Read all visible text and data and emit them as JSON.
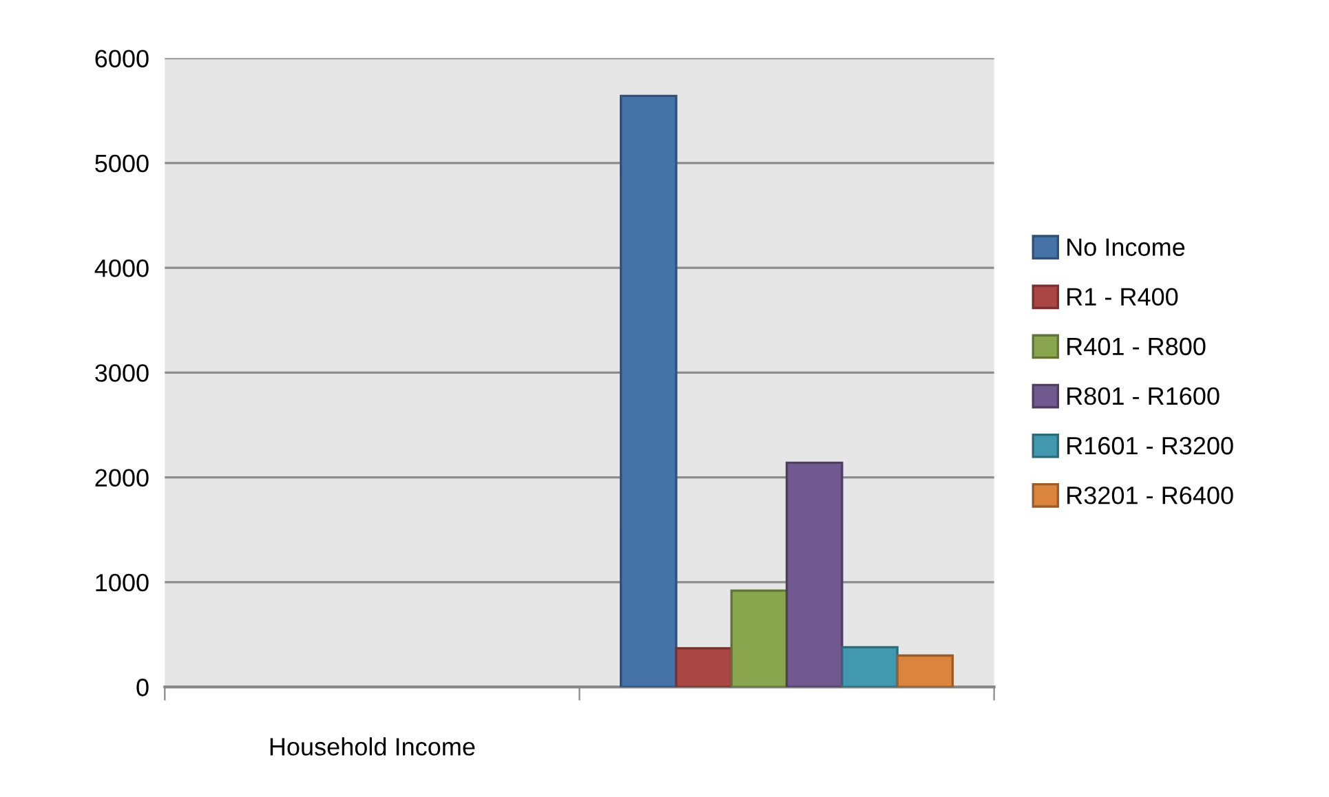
{
  "chart_data": {
    "type": "bar",
    "categories": [
      "Household Income",
      null
    ],
    "series": [
      {
        "name": "No Income",
        "color": "#4572a7",
        "values": [
          null,
          5640
        ]
      },
      {
        "name": "R1 - R400",
        "color": "#aa4643",
        "values": [
          null,
          370
        ]
      },
      {
        "name": "R401 - R800",
        "color": "#89a54e",
        "values": [
          null,
          920
        ]
      },
      {
        "name": "R801 - R1600",
        "color": "#71588f",
        "values": [
          null,
          2140
        ]
      },
      {
        "name": "R1601 - R3200",
        "color": "#4198af",
        "values": [
          null,
          380
        ]
      },
      {
        "name": "R3201 - R6400",
        "color": "#db843d",
        "values": [
          null,
          300
        ]
      }
    ],
    "ylim": [
      0,
      6000
    ],
    "yticks": [
      0,
      1000,
      2000,
      3000,
      4000,
      5000,
      6000
    ],
    "grid": "y",
    "legend": "right"
  }
}
